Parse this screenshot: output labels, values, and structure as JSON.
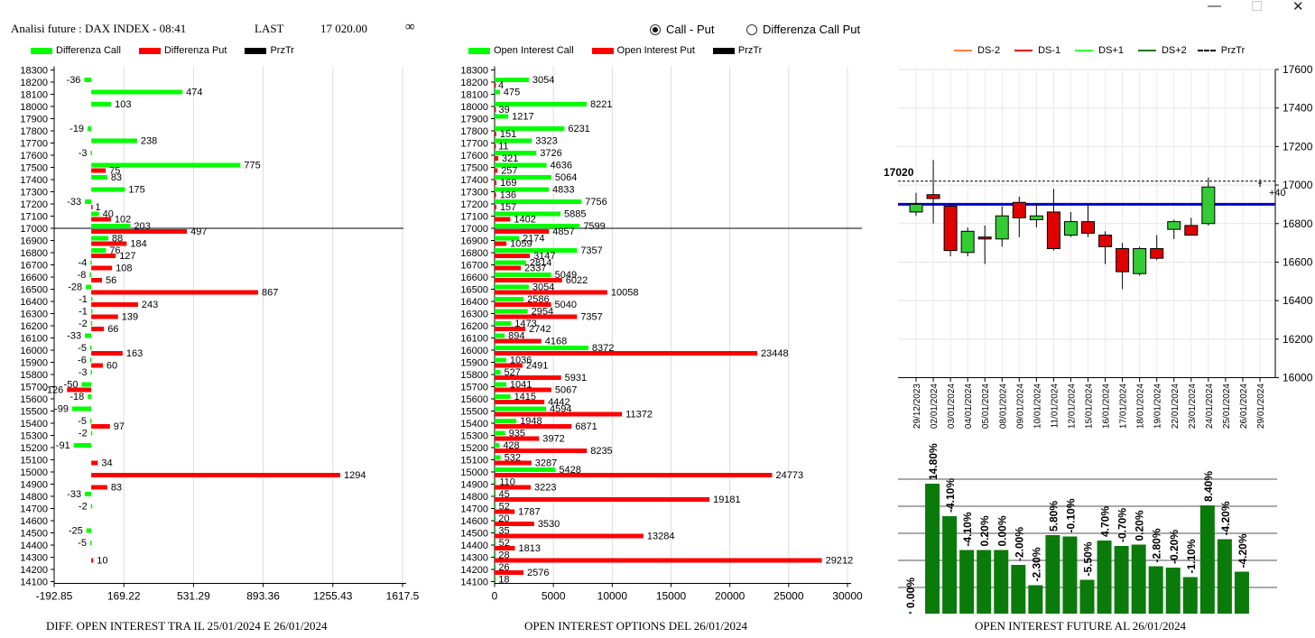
{
  "header": {
    "title": "Analisi future : DAX INDEX - 08:41",
    "last_label": "LAST",
    "last_value": "17 020.00",
    "infinity": "∞"
  },
  "radio": {
    "options": [
      "Call - Put",
      "Differenza Call Put"
    ],
    "selected": "Call - Put"
  },
  "window_buttons": {
    "minimize": "—",
    "maximize": "☐",
    "close": "✕"
  },
  "colors": {
    "green": "#00ff00",
    "red": "#ff0000",
    "black": "#000000",
    "blue": "#0000cc",
    "dark_green": "#0a7a0a"
  },
  "panels": {
    "left": {
      "legend": [
        "Differenza Call",
        "Differenza Put",
        "PrzTr"
      ],
      "caption": "DIFF. OPEN INTEREST TRA IL 25/01/2024 E 26/01/2024"
    },
    "middle": {
      "legend": [
        "Open Interest Call",
        "Open Interest Put",
        "PrzTr"
      ],
      "caption": "OPEN INTEREST OPTIONS DEL 26/01/2024"
    },
    "right": {
      "legend": [
        "DS-2",
        "DS-1",
        "DS+1",
        "DS+2",
        "PrzTr"
      ],
      "caption": "OPEN INTEREST FUTURE AL 26/01/2024"
    }
  },
  "chart_data": [
    {
      "type": "bar",
      "orientation": "horizontal",
      "categories": [
        18300,
        18200,
        18100,
        18000,
        17900,
        17800,
        17700,
        17600,
        17500,
        17400,
        17300,
        17200,
        17100,
        17000,
        16900,
        16800,
        16700,
        16600,
        16500,
        16400,
        16300,
        16200,
        16100,
        16000,
        15900,
        15800,
        15700,
        15600,
        15500,
        15400,
        15300,
        15200,
        15100,
        15000,
        14900,
        14800,
        14700,
        14600,
        14500,
        14400,
        14300,
        14200,
        14100
      ],
      "series": [
        {
          "name": "Differenza Call",
          "values": [
            null,
            -36,
            474,
            103,
            null,
            -19,
            238,
            -3,
            775,
            83,
            175,
            -33,
            40,
            203,
            88,
            76,
            -4,
            -8,
            -28,
            -1,
            -1,
            -2,
            -33,
            -5,
            -6,
            -3,
            -50,
            -18,
            -99,
            -5,
            -2,
            -91,
            null,
            null,
            null,
            -33,
            -2,
            null,
            -25,
            -5,
            null,
            null,
            null
          ]
        },
        {
          "name": "Differenza Put",
          "values": [
            null,
            null,
            null,
            null,
            null,
            null,
            null,
            null,
            75,
            null,
            null,
            1,
            102,
            497,
            184,
            127,
            108,
            56,
            867,
            243,
            139,
            66,
            null,
            163,
            60,
            null,
            -126,
            null,
            null,
            97,
            null,
            null,
            34,
            1294,
            83,
            null,
            null,
            null,
            null,
            null,
            10,
            null,
            null
          ]
        }
      ],
      "price_line": 17000,
      "xticks": [
        "-192.85",
        "169.22",
        "531.29",
        "893.36",
        "1255.43",
        "1617.5"
      ],
      "xlim": [
        -192.85,
        1617.5
      ]
    },
    {
      "type": "bar",
      "orientation": "horizontal",
      "categories": [
        18300,
        18200,
        18100,
        18000,
        17900,
        17800,
        17700,
        17600,
        17500,
        17400,
        17300,
        17200,
        17100,
        17000,
        16900,
        16800,
        16700,
        16600,
        16500,
        16400,
        16300,
        16200,
        16100,
        16000,
        15900,
        15800,
        15700,
        15600,
        15500,
        15400,
        15300,
        15200,
        15100,
        15000,
        14900,
        14800,
        14700,
        14600,
        14500,
        14400,
        14300,
        14200,
        14100
      ],
      "series": [
        {
          "name": "Open Interest Call",
          "values": [
            null,
            3054,
            475,
            8221,
            1217,
            6231,
            3323,
            3726,
            4636,
            5064,
            4833,
            7756,
            5885,
            7599,
            2174,
            7357,
            2814,
            5049,
            3054,
            2586,
            2954,
            1473,
            894,
            8372,
            1036,
            527,
            1041,
            1415,
            4594,
            1948,
            935,
            428,
            532,
            5428,
            110,
            45,
            52,
            20,
            35,
            52,
            28,
            26,
            18
          ]
        },
        {
          "name": "Open Interest Put",
          "values": [
            null,
            4,
            null,
            39,
            null,
            151,
            11,
            321,
            257,
            169,
            136,
            157,
            1402,
            4857,
            1059,
            3147,
            2337,
            6022,
            10058,
            5040,
            7357,
            2742,
            4168,
            23448,
            2491,
            5931,
            5067,
            4442,
            11372,
            6871,
            3972,
            8235,
            3287,
            24773,
            3223,
            19181,
            1787,
            3530,
            13284,
            1813,
            29212,
            2576,
            null
          ]
        }
      ],
      "price_line": 17000,
      "xticks": [
        "0",
        "5000",
        "10000",
        "15000",
        "20000",
        "25000",
        "30000"
      ],
      "xlim": [
        0,
        31500
      ]
    },
    {
      "type": "candlestick",
      "dates": [
        "29/12/2023",
        "02/01/2024",
        "03/01/2024",
        "04/01/2024",
        "05/01/2024",
        "08/01/2024",
        "09/01/2024",
        "10/01/2024",
        "11/01/2024",
        "12/01/2024",
        "15/01/2024",
        "16/01/2024",
        "17/01/2024",
        "18/01/2024",
        "19/01/2024",
        "22/01/2024",
        "23/01/2024",
        "24/01/2024",
        "25/01/2024",
        "26/01/2024",
        "29/01/2024"
      ],
      "ohlc": [
        [
          16860,
          16960,
          16840,
          16900
        ],
        [
          16950,
          17130,
          16800,
          16930
        ],
        [
          16890,
          16900,
          16630,
          16660
        ],
        [
          16650,
          16780,
          16630,
          16760
        ],
        [
          16730,
          16790,
          16590,
          16720
        ],
        [
          16720,
          16890,
          16680,
          16840
        ],
        [
          16910,
          16940,
          16730,
          16830
        ],
        [
          16820,
          16900,
          16780,
          16840
        ],
        [
          16860,
          16980,
          16660,
          16670
        ],
        [
          16740,
          16860,
          16730,
          16810
        ],
        [
          16810,
          16900,
          16730,
          16750
        ],
        [
          16740,
          16760,
          16590,
          16680
        ],
        [
          16670,
          16700,
          16460,
          16550
        ],
        [
          16540,
          16680,
          16530,
          16670
        ],
        [
          16670,
          16740,
          16610,
          16620
        ],
        [
          16770,
          16820,
          16720,
          16810
        ],
        [
          16790,
          16830,
          16750,
          16740
        ],
        [
          16800,
          17040,
          16790,
          16990
        ],
        [
          null,
          null,
          null,
          null
        ],
        [
          null,
          null,
          null,
          null
        ],
        [
          null,
          17030,
          16990,
          17010
        ]
      ],
      "up_color": "#33cc33",
      "down_color": "#e00000",
      "blue_line": 16900,
      "przTr": 17020,
      "przTr_label": "17020",
      "change_label": "+40",
      "ylim": [
        16000,
        17600
      ],
      "yticks": [
        "16000",
        "16200",
        "16400",
        "16600",
        "16800",
        "17000",
        "17200",
        "17400",
        "17600"
      ]
    },
    {
      "type": "bar",
      "labels": [
        "0.00%",
        "14.80%",
        "-4.10%",
        "-4.10%",
        "0.20%",
        "0.00%",
        "-2.00%",
        "-2.30%",
        "5.80%",
        "-0.10%",
        "-5.50%",
        "4.70%",
        "-0.70%",
        "0.20%",
        "-2.80%",
        "-0.20%",
        "-1.10%",
        "8.40%",
        "-4.20%",
        "-4.20%"
      ],
      "values": [
        0.01,
        0.96,
        0.72,
        0.47,
        0.47,
        0.47,
        0.36,
        0.21,
        0.58,
        0.57,
        0.25,
        0.54,
        0.5,
        0.51,
        0.35,
        0.34,
        0.27,
        0.8,
        0.55,
        0.31
      ]
    }
  ]
}
